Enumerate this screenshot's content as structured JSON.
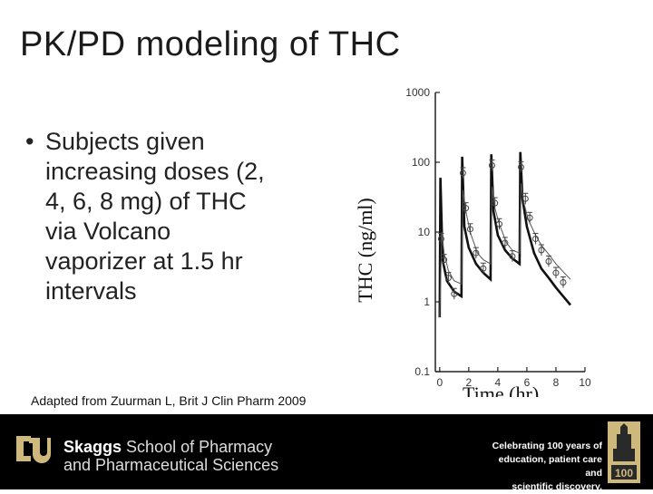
{
  "slide": {
    "title": "PK/PD modeling of THC",
    "bullet_symbol": "•",
    "bullet": "Subjects given increasing doses (2, 4, 6, 8 mg) of THC via Volcano vaporizer at 1.5 hr intervals",
    "citation": "Adapted from Zuurman L, Brit J Clin Pharm 2009"
  },
  "footer": {
    "school_name_bold": "Skaggs",
    "school_name_rest": "School of Pharmacy",
    "school_line2": "and Pharmaceutical Sciences",
    "tagline_1": "Celebrating 100 years of",
    "tagline_2": "education, patient care and",
    "tagline_3": "scientific discovery.",
    "badge_text": "100",
    "colors": {
      "background": "#000000",
      "logo": "#cfb87c",
      "text": "#ffffff"
    }
  },
  "chart_data": {
    "type": "line",
    "ylabel": "THC (ng/ml)",
    "xlabel": "Time (hr)",
    "yscale": "log",
    "ylim": [
      0.1,
      1000
    ],
    "xlim": [
      -0.3,
      10
    ],
    "yticks": [
      0.1,
      1,
      10,
      100,
      1000
    ],
    "ytick_labels": [
      "0.1",
      "1",
      "10",
      "100",
      "1000"
    ],
    "xticks": [
      0,
      2,
      4,
      6,
      8,
      10
    ],
    "xtick_labels": [
      "0",
      "2",
      "4",
      "6",
      "8",
      "10"
    ],
    "series": [
      {
        "style": "thick",
        "x": [
          0,
          0.05,
          0.2,
          0.5,
          1.0,
          1.5,
          1.55,
          1.7,
          2.0,
          2.5,
          3.0,
          3.5,
          3.55,
          3.7,
          4.0,
          4.5,
          5.0,
          5.5,
          5.55,
          5.7,
          6.0,
          6.5,
          7.0,
          7.5,
          8.0,
          8.5,
          9.0
        ],
        "y": [
          0.6,
          60,
          4,
          2.0,
          1.4,
          1.2,
          120,
          12,
          6,
          3.5,
          2.6,
          2.1,
          130,
          20,
          9,
          5.5,
          4.2,
          3.5,
          140,
          30,
          12,
          5,
          3,
          2.2,
          1.6,
          1.2,
          0.9
        ]
      },
      {
        "style": "thin",
        "x": [
          0,
          0.15,
          0.3,
          0.6,
          1.0,
          1.5,
          1.6,
          1.8,
          2.1,
          2.6,
          3.0,
          3.5,
          3.6,
          3.8,
          4.1,
          4.6,
          5.0,
          5.5,
          5.6,
          5.8,
          6.1,
          6.6,
          7.0,
          7.5,
          8.0,
          8.5,
          9.0
        ],
        "y": [
          0.6,
          10,
          5,
          2.8,
          2.0,
          1.8,
          40,
          20,
          10,
          5,
          4,
          3.5,
          45,
          22,
          13,
          7,
          5.5,
          5,
          50,
          26,
          15,
          9,
          6.5,
          4.8,
          3.5,
          2.7,
          2.1
        ]
      },
      {
        "style": "markers",
        "x": [
          0.1,
          0.3,
          0.6,
          1.0,
          1.6,
          1.8,
          2.1,
          2.5,
          3.0,
          3.6,
          3.8,
          4.1,
          4.5,
          5.0,
          5.6,
          5.9,
          6.2,
          6.6,
          7.0,
          7.5,
          8.0,
          8.5
        ],
        "y": [
          8,
          4,
          2.2,
          1.3,
          70,
          22,
          11,
          5,
          3,
          90,
          26,
          13,
          7,
          4.5,
          85,
          30,
          16,
          8,
          5.5,
          3.8,
          2.6,
          1.9
        ]
      }
    ]
  }
}
